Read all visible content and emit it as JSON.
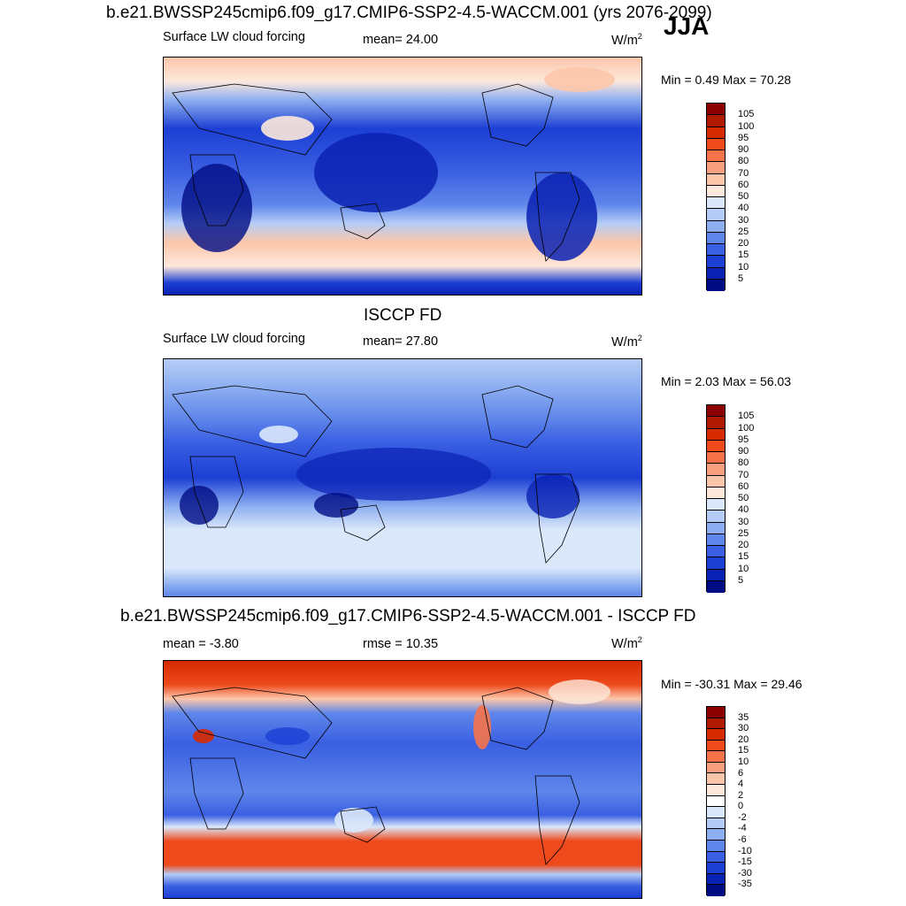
{
  "season": "JJA",
  "panels": [
    {
      "id": "model",
      "title": "b.e21.BWSSP245cmip6.f09_g17.CMIP6-SSP2-4.5-WACCM.001 (yrs 2076-2099)",
      "variable": "Surface LW cloud forcing",
      "stat": "mean=  24.00",
      "units": "W/m",
      "units_sup": "2",
      "minmax": "Min =   0.49 Max =  70.28"
    },
    {
      "id": "obs",
      "title": "ISCCP FD",
      "variable": "Surface LW cloud forcing",
      "stat": "mean=  27.80",
      "units": "W/m",
      "units_sup": "2",
      "minmax": "Min =   2.03 Max =  56.03"
    },
    {
      "id": "diff",
      "title": "b.e21.BWSSP245cmip6.f09_g17.CMIP6-SSP2-4.5-WACCM.001 - ISCCP FD",
      "variable": "mean =  -3.80",
      "stat": "rmse =  10.35",
      "units": "W/m",
      "units_sup": "2",
      "minmax": "Min = -30.31 Max =  29.46"
    }
  ],
  "colorbars": {
    "abs": {
      "labels": [
        "105",
        "100",
        "95",
        "90",
        "80",
        "70",
        "60",
        "50",
        "40",
        "30",
        "25",
        "20",
        "15",
        "10",
        "5"
      ],
      "colors": [
        "#8b0000",
        "#b01a00",
        "#d62a00",
        "#ee4a1c",
        "#f6734a",
        "#f9a07e",
        "#fcc6aa",
        "#fde8dc",
        "#dbe8fb",
        "#b5cdf6",
        "#8daef0",
        "#5f86ea",
        "#3a5fe2",
        "#1c3fd4",
        "#0a22b3",
        "#000c84"
      ]
    },
    "diff": {
      "labels": [
        "35",
        "30",
        "20",
        "15",
        "10",
        "6",
        "4",
        "2",
        "0",
        "-2",
        "-4",
        "-6",
        "-10",
        "-15",
        "-30",
        "-35"
      ],
      "colors": [
        "#8b0000",
        "#b01a00",
        "#d62a00",
        "#ee4a1c",
        "#f6734a",
        "#f9a07e",
        "#fcc6aa",
        "#fde8dc",
        "#ffffff",
        "#dbe8fb",
        "#b5cdf6",
        "#8daef0",
        "#5f86ea",
        "#3a5fe2",
        "#1c3fd4",
        "#0a22b3",
        "#000c84"
      ]
    }
  }
}
